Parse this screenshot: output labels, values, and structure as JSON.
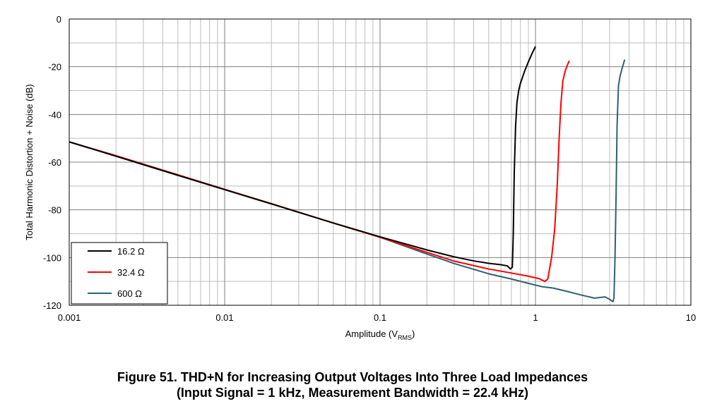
{
  "chart_data": {
    "type": "line",
    "xscale": "log",
    "xlim": [
      0.001,
      10
    ],
    "ylim": [
      -120,
      0
    ],
    "xlabel_main": "Amplitude (V",
    "xlabel_sub": "RMS",
    "xlabel_end": ")",
    "ylabel": "Total Harmonic Distortion + Noise (dB)",
    "x_ticks": [
      {
        "value": 0.001,
        "label": "0.001"
      },
      {
        "value": 0.01,
        "label": "0.01"
      },
      {
        "value": 0.1,
        "label": "0.1"
      },
      {
        "value": 1,
        "label": "1"
      },
      {
        "value": 10,
        "label": "10"
      }
    ],
    "y_ticks": [
      {
        "value": 0,
        "label": "0"
      },
      {
        "value": -20,
        "label": "-20"
      },
      {
        "value": -40,
        "label": "-40"
      },
      {
        "value": -60,
        "label": "-60"
      },
      {
        "value": -80,
        "label": "-80"
      },
      {
        "value": -100,
        "label": "-100"
      },
      {
        "value": -120,
        "label": "-120"
      }
    ],
    "grid": true,
    "legend_position": "bottom-left",
    "series": [
      {
        "name": "16.2 Ω",
        "color": "#000000",
        "points": [
          [
            0.001,
            -51.5
          ],
          [
            0.002,
            -57.5
          ],
          [
            0.005,
            -65.5
          ],
          [
            0.01,
            -71.5
          ],
          [
            0.02,
            -77.5
          ],
          [
            0.05,
            -85.5
          ],
          [
            0.1,
            -91.3
          ],
          [
            0.2,
            -96.8
          ],
          [
            0.3,
            -99.7
          ],
          [
            0.4,
            -101.4
          ],
          [
            0.5,
            -102.4
          ],
          [
            0.6,
            -103.0
          ],
          [
            0.66,
            -103.5
          ],
          [
            0.69,
            -104.8
          ],
          [
            0.71,
            -104.0
          ],
          [
            0.72,
            -90
          ],
          [
            0.73,
            -65
          ],
          [
            0.745,
            -45
          ],
          [
            0.76,
            -35
          ],
          [
            0.78,
            -30
          ],
          [
            0.8,
            -27
          ],
          [
            0.85,
            -22
          ],
          [
            0.9,
            -18
          ],
          [
            0.95,
            -14.5
          ],
          [
            1.0,
            -11.5
          ]
        ]
      },
      {
        "name": "32.4 Ω",
        "color": "#ff0000",
        "points": [
          [
            0.001,
            -51.5
          ],
          [
            0.002,
            -57.3
          ],
          [
            0.005,
            -65.3
          ],
          [
            0.01,
            -71.4
          ],
          [
            0.02,
            -77.4
          ],
          [
            0.05,
            -85.5
          ],
          [
            0.1,
            -91.5
          ],
          [
            0.2,
            -97.8
          ],
          [
            0.3,
            -101.5
          ],
          [
            0.5,
            -104.8
          ],
          [
            0.7,
            -106.5
          ],
          [
            0.9,
            -107.8
          ],
          [
            1.05,
            -108.8
          ],
          [
            1.15,
            -110.0
          ],
          [
            1.2,
            -109.0
          ],
          [
            1.27,
            -100
          ],
          [
            1.33,
            -88
          ],
          [
            1.38,
            -70
          ],
          [
            1.42,
            -50
          ],
          [
            1.46,
            -35
          ],
          [
            1.5,
            -26
          ],
          [
            1.55,
            -22
          ],
          [
            1.6,
            -19.5
          ],
          [
            1.65,
            -17.5
          ]
        ]
      },
      {
        "name": "600 Ω",
        "color": "#2f6072",
        "points": [
          [
            0.001,
            -51.5
          ],
          [
            0.002,
            -57.5
          ],
          [
            0.005,
            -65.5
          ],
          [
            0.01,
            -71.5
          ],
          [
            0.02,
            -77.5
          ],
          [
            0.05,
            -85.5
          ],
          [
            0.1,
            -91.5
          ],
          [
            0.2,
            -98.5
          ],
          [
            0.3,
            -102.5
          ],
          [
            0.5,
            -106.8
          ],
          [
            0.7,
            -109.0
          ],
          [
            0.9,
            -110.8
          ],
          [
            1.1,
            -112.2
          ],
          [
            1.3,
            -112.8
          ],
          [
            1.6,
            -114.2
          ],
          [
            2.0,
            -115.8
          ],
          [
            2.4,
            -117.0
          ],
          [
            2.8,
            -116.5
          ],
          [
            3.0,
            -117.5
          ],
          [
            3.15,
            -118.5
          ],
          [
            3.2,
            -117
          ],
          [
            3.25,
            -100
          ],
          [
            3.3,
            -75
          ],
          [
            3.35,
            -45
          ],
          [
            3.42,
            -28
          ],
          [
            3.5,
            -24
          ],
          [
            3.6,
            -21
          ],
          [
            3.75,
            -17
          ]
        ]
      }
    ]
  },
  "caption": {
    "line1": "Figure 51.  THD+N for Increasing Output Voltages Into Three Load Impedances",
    "line2": "(Input Signal = 1 kHz, Measurement Bandwidth = 22.4 kHz)"
  }
}
